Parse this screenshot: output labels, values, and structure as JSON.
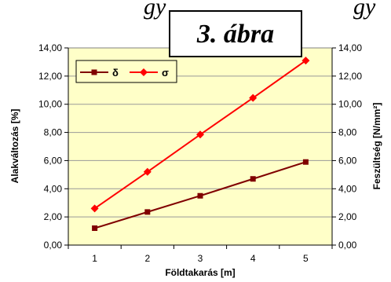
{
  "header": {
    "text_left": "gy",
    "text_right": "gy"
  },
  "figure_label": "3. ábra",
  "chart_data": {
    "type": "line",
    "x": [
      1,
      2,
      3,
      4,
      5
    ],
    "xlabel": "Földtakarás [m]",
    "ylabel_left": "Alakváltozás [%]",
    "ylabel_right": "Feszültség [N/mm²]",
    "xlim": [
      0.5,
      5.5
    ],
    "ylim": [
      0,
      14
    ],
    "y_ticks": [
      "0,00",
      "2,00",
      "4,00",
      "6,00",
      "8,00",
      "10,00",
      "12,00",
      "14,00"
    ],
    "grid": true,
    "legend_position": "top-left",
    "plot_background": "#FFFFC8",
    "series": [
      {
        "name": "δ",
        "values": [
          1.2,
          2.35,
          3.5,
          4.7,
          5.9
        ],
        "color": "#800000",
        "marker": "square"
      },
      {
        "name": "σ",
        "values": [
          2.6,
          5.2,
          7.85,
          10.45,
          13.1
        ],
        "color": "#FF0000",
        "marker": "diamond"
      }
    ]
  }
}
